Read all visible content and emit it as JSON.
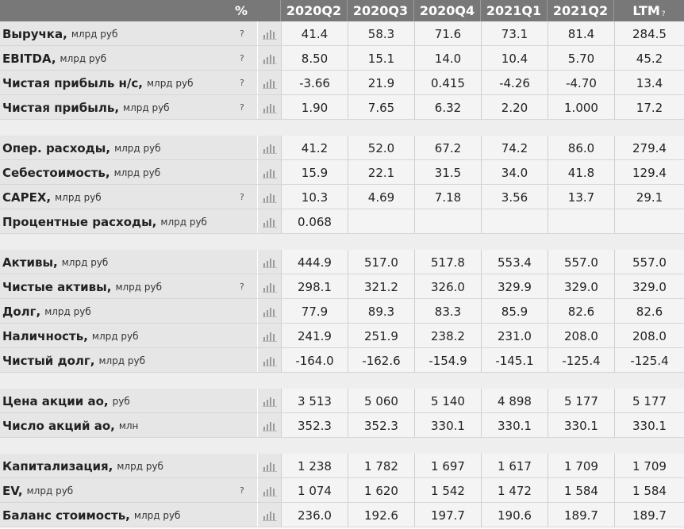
{
  "header": {
    "percent_label": "%",
    "periods": [
      "2020Q2",
      "2020Q3",
      "2020Q4",
      "2021Q1",
      "2021Q2",
      "LTM"
    ],
    "ltm_help": "?"
  },
  "groups": [
    [
      {
        "name": "Выручка,",
        "unit": "млрд руб",
        "help": "?",
        "values": [
          "41.4",
          "58.3",
          "71.6",
          "73.1",
          "81.4",
          "284.5"
        ]
      },
      {
        "name": "EBITDA,",
        "unit": "млрд руб",
        "help": "?",
        "values": [
          "8.50",
          "15.1",
          "14.0",
          "10.4",
          "5.70",
          "45.2"
        ]
      },
      {
        "name": "Чистая прибыль н/с,",
        "unit": "млрд руб",
        "help": "?",
        "values": [
          "-3.66",
          "21.9",
          "0.415",
          "-4.26",
          "-4.70",
          "13.4"
        ]
      },
      {
        "name": "Чистая прибыль,",
        "unit": "млрд руб",
        "help": "?",
        "values": [
          "1.90",
          "7.65",
          "6.32",
          "2.20",
          "1.000",
          "17.2"
        ]
      }
    ],
    [
      {
        "name": "Опер. расходы,",
        "unit": "млрд руб",
        "help": "",
        "values": [
          "41.2",
          "52.0",
          "67.2",
          "74.2",
          "86.0",
          "279.4"
        ]
      },
      {
        "name": "Себестоимость,",
        "unit": "млрд руб",
        "help": "",
        "values": [
          "15.9",
          "22.1",
          "31.5",
          "34.0",
          "41.8",
          "129.4"
        ]
      },
      {
        "name": "CAPEX,",
        "unit": "млрд руб",
        "help": "?",
        "values": [
          "10.3",
          "4.69",
          "7.18",
          "3.56",
          "13.7",
          "29.1"
        ]
      },
      {
        "name": "Процентные расходы,",
        "unit": "млрд руб",
        "help": "",
        "values": [
          "0.068",
          "",
          "",
          "",
          "",
          ""
        ]
      }
    ],
    [
      {
        "name": "Активы,",
        "unit": "млрд руб",
        "help": "",
        "values": [
          "444.9",
          "517.0",
          "517.8",
          "553.4",
          "557.0",
          "557.0"
        ]
      },
      {
        "name": "Чистые активы,",
        "unit": "млрд руб",
        "help": "?",
        "values": [
          "298.1",
          "321.2",
          "326.0",
          "329.9",
          "329.0",
          "329.0"
        ]
      },
      {
        "name": "Долг,",
        "unit": "млрд руб",
        "help": "",
        "values": [
          "77.9",
          "89.3",
          "83.3",
          "85.9",
          "82.6",
          "82.6"
        ]
      },
      {
        "name": "Наличность,",
        "unit": "млрд руб",
        "help": "",
        "values": [
          "241.9",
          "251.9",
          "238.2",
          "231.0",
          "208.0",
          "208.0"
        ]
      },
      {
        "name": "Чистый долг,",
        "unit": "млрд руб",
        "help": "",
        "values": [
          "-164.0",
          "-162.6",
          "-154.9",
          "-145.1",
          "-125.4",
          "-125.4"
        ]
      }
    ],
    [
      {
        "name": "Цена акции ао,",
        "unit": "руб",
        "help": "",
        "values": [
          "3 513",
          "5 060",
          "5 140",
          "4 898",
          "5 177",
          "5 177"
        ]
      },
      {
        "name": "Число акций ао,",
        "unit": "млн",
        "help": "",
        "values": [
          "352.3",
          "352.3",
          "330.1",
          "330.1",
          "330.1",
          "330.1"
        ]
      }
    ],
    [
      {
        "name": "Капитализация,",
        "unit": "млрд руб",
        "help": "",
        "values": [
          "1 238",
          "1 782",
          "1 697",
          "1 617",
          "1 709",
          "1 709"
        ]
      },
      {
        "name": "EV,",
        "unit": "млрд руб",
        "help": "?",
        "values": [
          "1 074",
          "1 620",
          "1 542",
          "1 472",
          "1 584",
          "1 584"
        ]
      },
      {
        "name": "Баланс стоимость,",
        "unit": "млрд руб",
        "help": "",
        "values": [
          "236.0",
          "192.6",
          "197.7",
          "190.6",
          "189.7",
          "189.7"
        ]
      }
    ]
  ],
  "icons": {
    "chart": "bar-chart-icon"
  },
  "colors": {
    "header_bg": "#787878",
    "label_bg": "#e6e6e6",
    "value_bg": "#f4f4f4",
    "separator_bg": "#eeeeee"
  }
}
